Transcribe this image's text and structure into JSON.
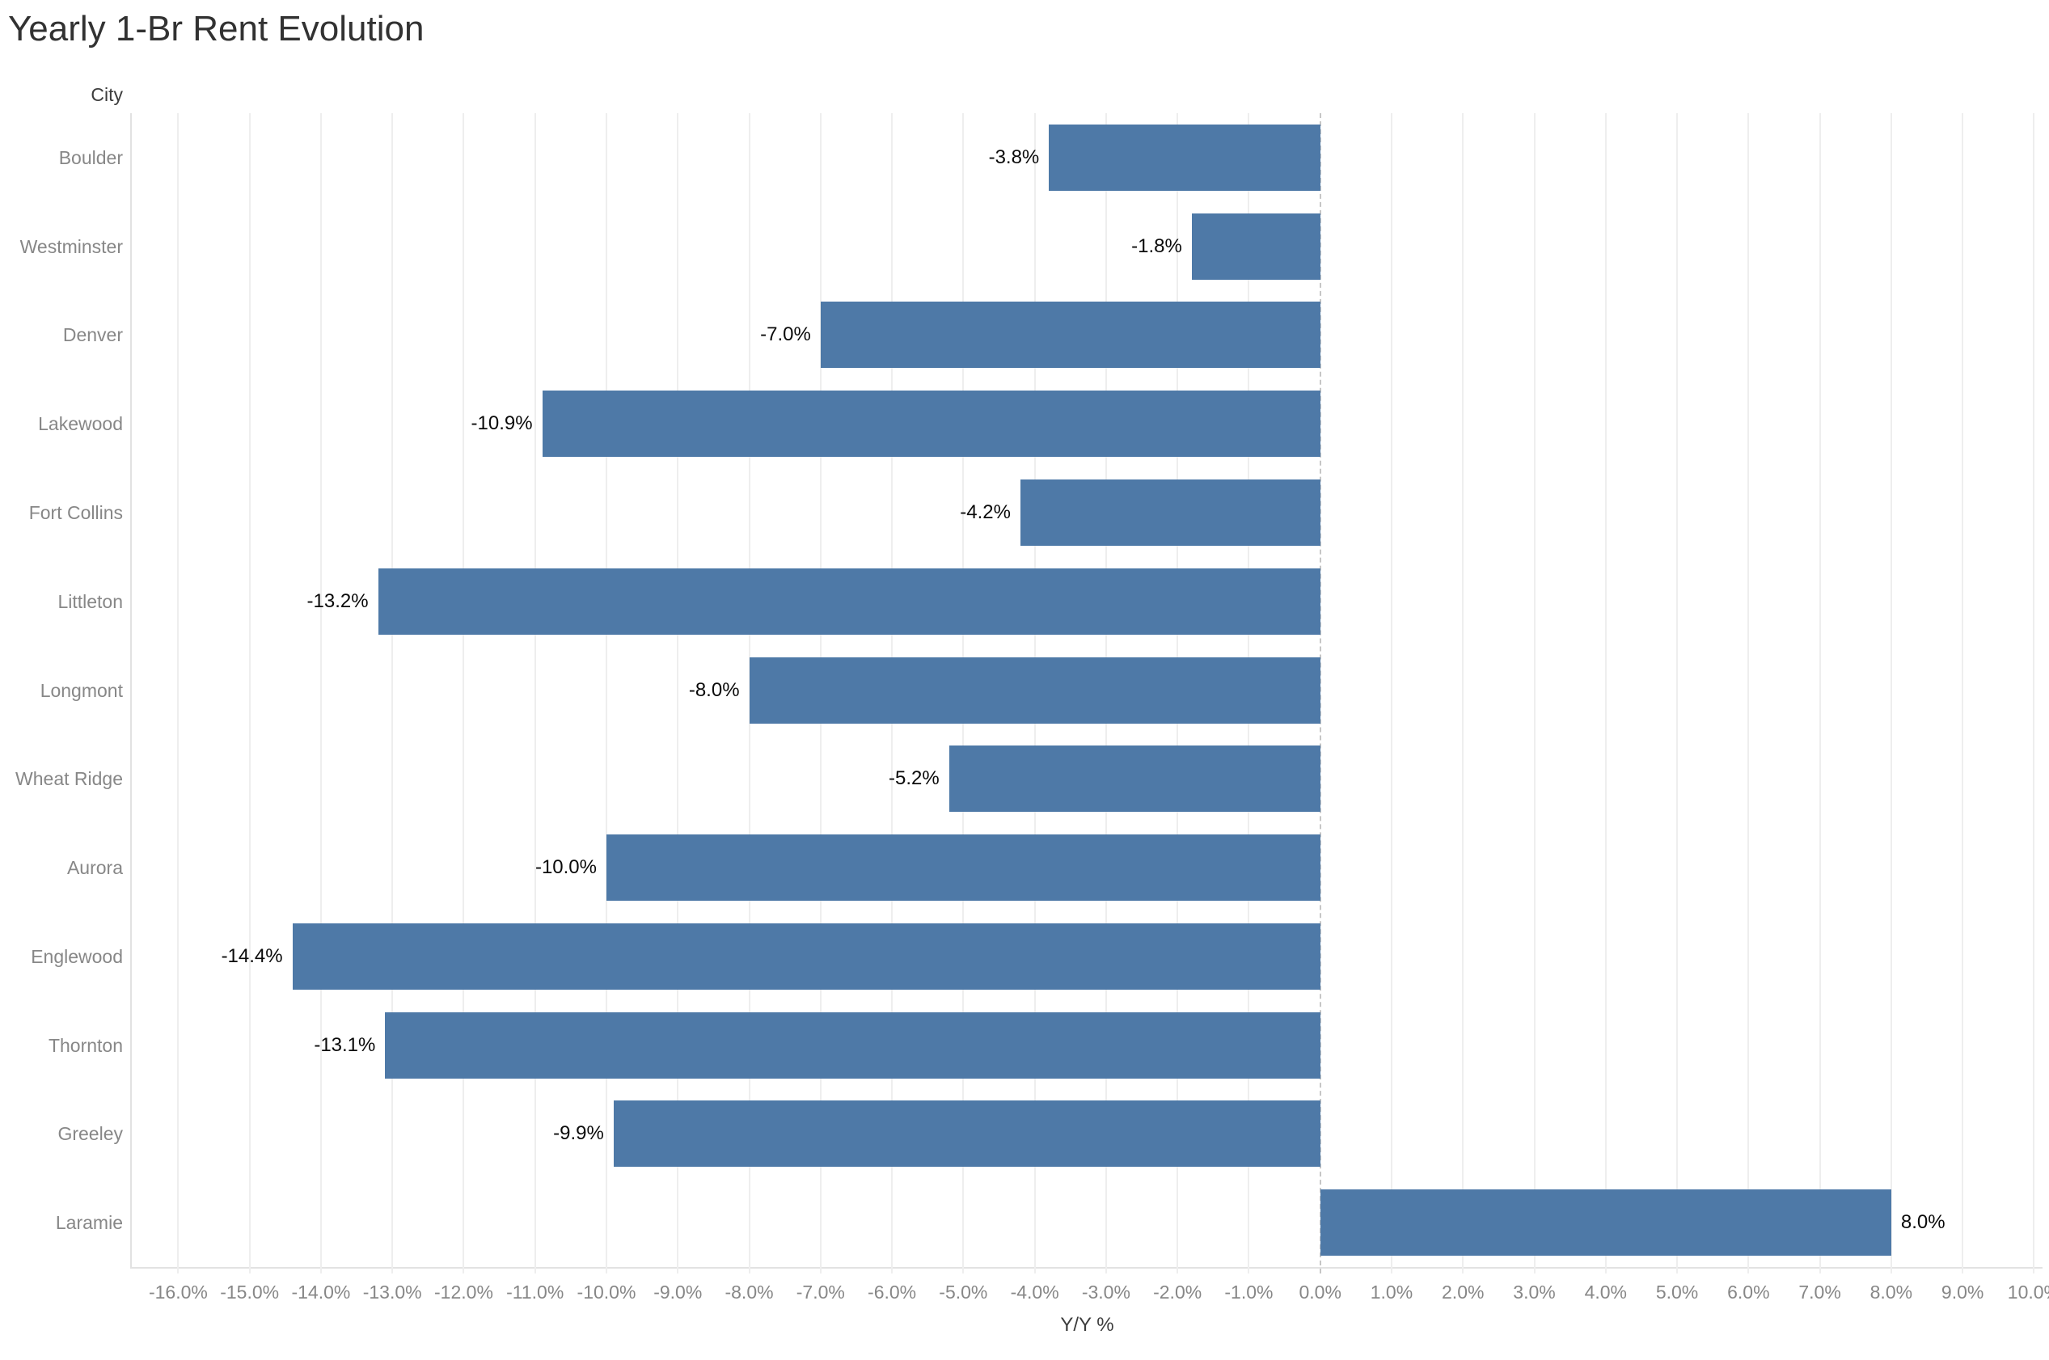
{
  "chart_data": {
    "type": "bar",
    "orientation": "horizontal",
    "title": "Yearly 1-Br Rent Evolution",
    "ylabel": "City",
    "xlabel": "Y/Y %",
    "categories": [
      "Boulder",
      "Westminster",
      "Denver",
      "Lakewood",
      "Fort Collins",
      "Littleton",
      "Longmont",
      "Wheat Ridge",
      "Aurora",
      "Englewood",
      "Thornton",
      "Greeley",
      "Laramie"
    ],
    "values": [
      -3.8,
      -1.8,
      -7.0,
      -10.9,
      -4.2,
      -13.2,
      -8.0,
      -5.2,
      -10.0,
      -14.4,
      -13.1,
      -9.9,
      8.0
    ],
    "value_labels": [
      "-3.8%",
      "-1.8%",
      "-7.0%",
      "-10.9%",
      "-4.2%",
      "-13.2%",
      "-8.0%",
      "-5.2%",
      "-10.0%",
      "-14.4%",
      "-13.1%",
      "-9.9%",
      "8.0%"
    ],
    "x_ticks": [
      -16,
      -15,
      -14,
      -13,
      -12,
      -11,
      -10,
      -9,
      -8,
      -7,
      -6,
      -5,
      -4,
      -3,
      -2,
      -1,
      0,
      1,
      2,
      3,
      4,
      5,
      6,
      7,
      8,
      9,
      10
    ],
    "x_tick_labels": [
      "-16.0%",
      "-15.0%",
      "-14.0%",
      "-13.0%",
      "-12.0%",
      "-11.0%",
      "-10.0%",
      "-9.0%",
      "-8.0%",
      "-7.0%",
      "-6.0%",
      "-5.0%",
      "-4.0%",
      "-3.0%",
      "-2.0%",
      "-1.0%",
      "0.0%",
      "1.0%",
      "2.0%",
      "3.0%",
      "4.0%",
      "5.0%",
      "6.0%",
      "7.0%",
      "8.0%",
      "9.0%",
      "10.0%"
    ],
    "xlim": [
      -16.65,
      10.12
    ],
    "grid": "vertical",
    "legend": "none",
    "zero_line_style": "dashed",
    "bar_color": "#4e79a7",
    "gridline_color": "#eeeeee",
    "zero_line_color": "#c6c6c6",
    "label_color": "#0a0a0a",
    "axis_text_color": "#878787",
    "title_color": "#323232"
  }
}
